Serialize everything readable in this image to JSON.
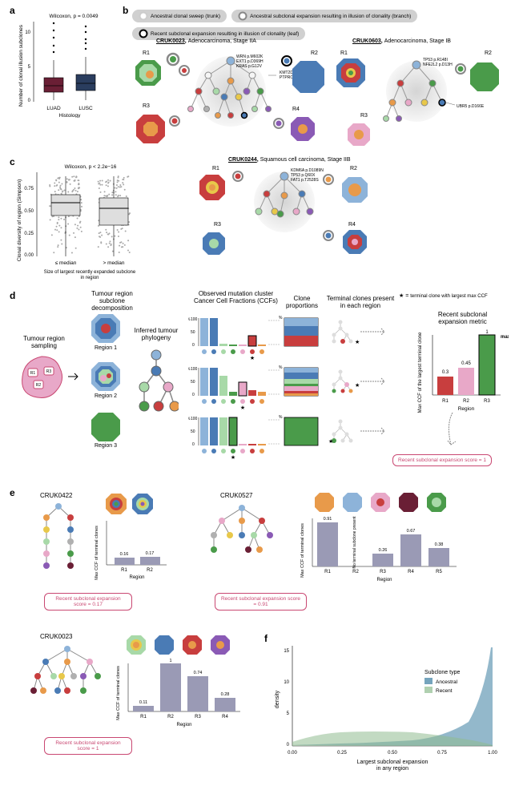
{
  "colors": {
    "luad": "#6a1f35",
    "lusc": "#2a3d5e",
    "accent_pink": "#c94872",
    "ancestral": "#3b7ea1",
    "recent": "#8fbc8f",
    "bar_gray": "#9a9ab5",
    "box_gray": "#dedede",
    "clone_red": "#c83e3e",
    "clone_blue": "#4a7bb5",
    "clone_lblue": "#8db3d9",
    "clone_green": "#4a9b4a",
    "clone_lgreen": "#a8d9a8",
    "clone_orange": "#e89a4a",
    "clone_yellow": "#e8c84a",
    "clone_purple": "#8a5ab5",
    "clone_pink": "#e8a8c8",
    "clone_gray": "#b0b0b0",
    "clone_white": "#f5f5f5"
  },
  "panel_a": {
    "test": "Wilcoxon, p = 0.0049",
    "ylabel": "Number of clonal illusion subclones",
    "xlabel": "Histology",
    "categories": [
      "LUAD",
      "LUSC"
    ],
    "y_ticks": [
      0,
      5,
      10
    ],
    "ylim": [
      0,
      12
    ],
    "boxes": [
      {
        "median": 2.2,
        "q1": 1.5,
        "q3": 3.5,
        "whisker_low": 0.2,
        "whisker_high": 6.0,
        "outliers": [
          7.2,
          8.1,
          9.5,
          10.5,
          11.8
        ]
      },
      {
        "median": 2.5,
        "q1": 1.7,
        "q3": 4.0,
        "whisker_low": 0.2,
        "whisker_high": 6.5,
        "outliers": [
          7.8,
          8.5,
          9.0,
          10.2,
          11.0
        ]
      }
    ]
  },
  "panel_b": {
    "legend": [
      {
        "ring": "#cccccc",
        "label": "Ancestral clonal sweep (trunk)"
      },
      {
        "ring": "#888888",
        "label": "Ancestral subclonal expansion resulting in illusion of clonality (branch)"
      },
      {
        "ring": "#000000",
        "label": "Recent subclonal expansion resulting in illusion of clonality (leaf)"
      }
    ],
    "cases": [
      {
        "id": "CRUK0023",
        "type": "Adenocarcinoma, Stage IIA",
        "regions": [
          "R1",
          "R2",
          "R3",
          "R4"
        ],
        "mutations": [
          "WRN p.M602K",
          "EXT1 p.D369H",
          "KRAS p.G12V",
          "KMT2D p.R5448X",
          "PTPRC p.R1044H"
        ]
      },
      {
        "id": "CRUK0603",
        "type": "Adenocarcinoma, Stage IB",
        "regions": [
          "R1",
          "R2",
          "R3"
        ],
        "mutations": [
          "TP53 p.R148I",
          "NFE2L2 p.D13H",
          "UBR5 p.D166E"
        ]
      },
      {
        "id": "CRUK0244",
        "type": "Squamous cell carcinoma, Stage IIB",
        "regions": [
          "R1",
          "R2",
          "R3",
          "R4"
        ],
        "mutations": [
          "KDM6A p.D1089N",
          "TP53 p.Q60X",
          "FAT1 p.T2528S"
        ]
      }
    ]
  },
  "panel_c": {
    "test": "Wilcoxon, p < 2.2e−16",
    "ylabel": "Clonal diversity of region (Simpson)",
    "xlabel": "Size of largest recently expanded subclone in region",
    "categories": [
      "≤ median",
      "> median"
    ],
    "y_ticks": [
      0.0,
      0.25,
      0.5,
      0.75
    ],
    "ylim": [
      0,
      0.9
    ],
    "boxes": [
      {
        "median": 0.62,
        "q1": 0.48,
        "q3": 0.7
      },
      {
        "median": 0.55,
        "q1": 0.35,
        "q3": 0.66
      }
    ]
  },
  "panel_d": {
    "headers": {
      "sampling": "Tumour region sampling",
      "decomp": "Tumour region subclone decomposition",
      "phylogeny": "Inferred tumour phylogeny",
      "ccf": "Observed mutation cluster Cancer Cell Fractions (CCFs)",
      "props": "Clone proportions",
      "terminal": "Terminal clones present in each region",
      "star_note": "terminal clone with largest max CCF",
      "metric": "Recent subclonal expansion metric"
    },
    "regions": [
      "Region 1",
      "Region 2",
      "Region 3"
    ],
    "ccf_ticks": [
      0,
      50,
      100
    ],
    "metric_bars": [
      {
        "region": "R1",
        "value": 0.3,
        "color": "#c83e3e"
      },
      {
        "region": "R2",
        "value": 0.45,
        "color": "#e8a8c8"
      },
      {
        "region": "R3",
        "value": 1,
        "color": "#4a9b4a",
        "label": "max"
      }
    ],
    "metric_ylabel": "Max CCF of the largest terminal clone",
    "metric_xlabel": "Region",
    "score_text": "Recent subclonal expansion score = 1"
  },
  "panel_e": {
    "cases": [
      {
        "id": "CRUK0422",
        "regions": [
          "R1",
          "R2"
        ],
        "values": [
          0.16,
          0.17
        ],
        "score": "Recent subclonal expansion score = 0.17"
      },
      {
        "id": "CRUK0527",
        "regions": [
          "R1",
          "R2",
          "R3",
          "R4",
          "R5"
        ],
        "values": [
          0.91,
          null,
          0.26,
          0.67,
          0.38
        ],
        "null_label": "No terminal subclone present",
        "score": "Recent subclonal expansion score = 0.91"
      },
      {
        "id": "CRUK0023",
        "regions": [
          "R1",
          "R2",
          "R3",
          "R4"
        ],
        "values": [
          0.11,
          1,
          0.74,
          0.28
        ],
        "score": "Recent subclonal expansion score = 1"
      }
    ],
    "ylabel": "Max CCF of terminal clones",
    "xlabel": "Region"
  },
  "panel_f": {
    "ylabel": "density",
    "xlabel": "Largest subclonal expansion in any region",
    "x_ticks": [
      0.0,
      0.25,
      0.5,
      0.75,
      1.0
    ],
    "y_ticks": [
      0,
      5,
      10,
      15
    ],
    "legend_title": "Subclone type",
    "legend": [
      {
        "label": "Ancestral",
        "color": "#3b7ea1"
      },
      {
        "label": "Recent",
        "color": "#8fbc8f"
      }
    ]
  }
}
